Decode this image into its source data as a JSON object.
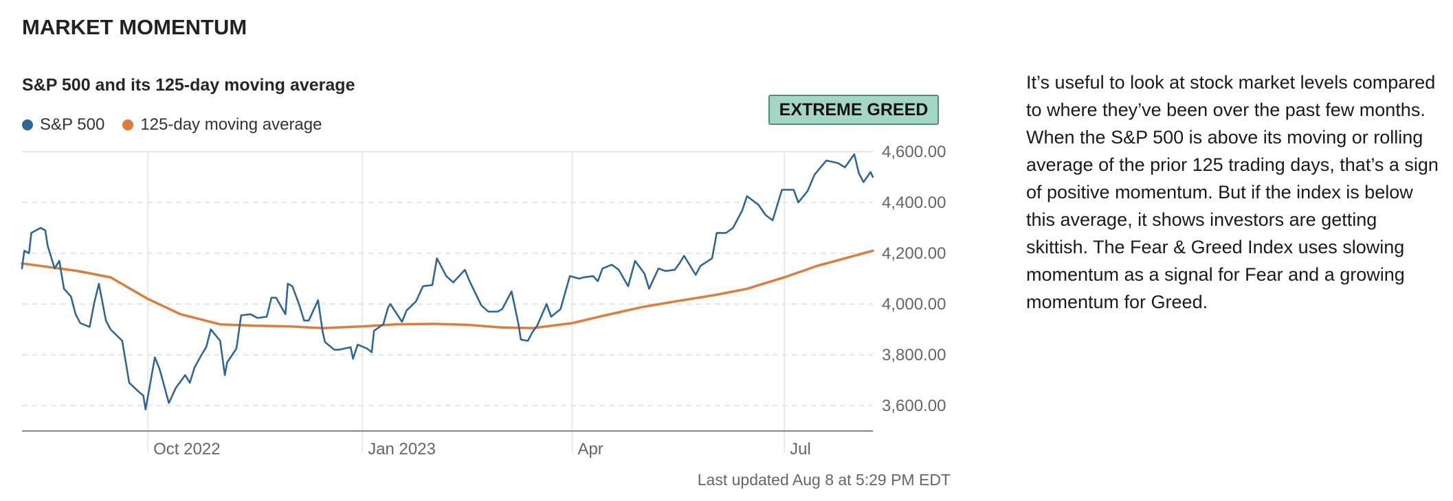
{
  "section": {
    "title": "MARKET MOMENTUM"
  },
  "badge": {
    "label": "EXTREME GREED",
    "color": "#a3d6c4"
  },
  "description": "It’s useful to look at stock market levels compared to where they’ve been over the past few months. When the S&P 500 is above its moving or rolling average of the prior 125 trading days, that’s a sign of positive momentum. But if the index is below this average, it shows investors are getting skittish. The Fear & Greed Index uses slowing momentum as a signal for Fear and a growing momentum for Greed.",
  "last_updated": "Last updated Aug 8 at 5:29 PM EDT",
  "chart_data": {
    "type": "line",
    "title": "S&P 500 and its 125-day moving average",
    "xlabel": "",
    "ylabel": "",
    "x_range": [
      "2022-08-08",
      "2023-08-08"
    ],
    "ylim": [
      3500,
      4600
    ],
    "yticks": [
      3600,
      3800,
      4000,
      4200,
      4400,
      4600
    ],
    "ytick_labels": [
      "3,600.00",
      "3,800.00",
      "4,000.00",
      "4,200.00",
      "4,400.00",
      "4,600.00"
    ],
    "xticks": [
      {
        "date": "2022-10-01",
        "label": "Oct 2022"
      },
      {
        "date": "2023-01-01",
        "label": "Jan 2023"
      },
      {
        "date": "2023-04-01",
        "label": "Apr"
      },
      {
        "date": "2023-07-01",
        "label": "Jul"
      }
    ],
    "grid": {
      "horizontal_dashed": true,
      "vertical": true
    },
    "legend_position": "top-left",
    "series": [
      {
        "name": "S&P 500",
        "color": "#2e6696",
        "points": [
          [
            "2022-08-08",
            4140
          ],
          [
            "2022-08-09",
            4210
          ],
          [
            "2022-08-11",
            4200
          ],
          [
            "2022-08-12",
            4280
          ],
          [
            "2022-08-16",
            4300
          ],
          [
            "2022-08-18",
            4290
          ],
          [
            "2022-08-19",
            4230
          ],
          [
            "2022-08-22",
            4140
          ],
          [
            "2022-08-24",
            4170
          ],
          [
            "2022-08-26",
            4060
          ],
          [
            "2022-08-29",
            4030
          ],
          [
            "2022-08-31",
            3960
          ],
          [
            "2022-09-02",
            3925
          ],
          [
            "2022-09-06",
            3910
          ],
          [
            "2022-09-08",
            4005
          ],
          [
            "2022-09-10",
            4080
          ],
          [
            "2022-09-13",
            3935
          ],
          [
            "2022-09-15",
            3900
          ],
          [
            "2022-09-20",
            3855
          ],
          [
            "2022-09-23",
            3690
          ],
          [
            "2022-09-27",
            3655
          ],
          [
            "2022-09-29",
            3640
          ],
          [
            "2022-09-30",
            3585
          ],
          [
            "2022-10-04",
            3790
          ],
          [
            "2022-10-06",
            3745
          ],
          [
            "2022-10-10",
            3610
          ],
          [
            "2022-10-13",
            3670
          ],
          [
            "2022-10-17",
            3720
          ],
          [
            "2022-10-19",
            3690
          ],
          [
            "2022-10-21",
            3750
          ],
          [
            "2022-10-24",
            3800
          ],
          [
            "2022-10-26",
            3830
          ],
          [
            "2022-10-28",
            3900
          ],
          [
            "2022-11-01",
            3855
          ],
          [
            "2022-11-03",
            3720
          ],
          [
            "2022-11-04",
            3770
          ],
          [
            "2022-11-08",
            3825
          ],
          [
            "2022-11-10",
            3955
          ],
          [
            "2022-11-14",
            3960
          ],
          [
            "2022-11-17",
            3945
          ],
          [
            "2022-11-21",
            3950
          ],
          [
            "2022-11-23",
            4025
          ],
          [
            "2022-11-25",
            4025
          ],
          [
            "2022-11-29",
            3960
          ],
          [
            "2022-11-30",
            4080
          ],
          [
            "2022-12-02",
            4070
          ],
          [
            "2022-12-05",
            3995
          ],
          [
            "2022-12-07",
            3935
          ],
          [
            "2022-12-09",
            3935
          ],
          [
            "2022-12-13",
            4015
          ],
          [
            "2022-12-15",
            3890
          ],
          [
            "2022-12-16",
            3850
          ],
          [
            "2022-12-20",
            3820
          ],
          [
            "2022-12-22",
            3820
          ],
          [
            "2022-12-27",
            3830
          ],
          [
            "2022-12-28",
            3785
          ],
          [
            "2022-12-30",
            3840
          ],
          [
            "2023-01-03",
            3825
          ],
          [
            "2023-01-05",
            3810
          ],
          [
            "2023-01-06",
            3895
          ],
          [
            "2023-01-10",
            3920
          ],
          [
            "2023-01-12",
            3985
          ],
          [
            "2023-01-13",
            4000
          ],
          [
            "2023-01-18",
            3930
          ],
          [
            "2023-01-20",
            3975
          ],
          [
            "2023-01-24",
            4010
          ],
          [
            "2023-01-27",
            4070
          ],
          [
            "2023-01-31",
            4075
          ],
          [
            "2023-02-02",
            4180
          ],
          [
            "2023-02-06",
            4110
          ],
          [
            "2023-02-09",
            4085
          ],
          [
            "2023-02-14",
            4135
          ],
          [
            "2023-02-16",
            4090
          ],
          [
            "2023-02-21",
            3995
          ],
          [
            "2023-02-24",
            3970
          ],
          [
            "2023-02-28",
            3970
          ],
          [
            "2023-03-02",
            3980
          ],
          [
            "2023-03-06",
            4050
          ],
          [
            "2023-03-09",
            3920
          ],
          [
            "2023-03-10",
            3860
          ],
          [
            "2023-03-13",
            3855
          ],
          [
            "2023-03-15",
            3890
          ],
          [
            "2023-03-17",
            3915
          ],
          [
            "2023-03-21",
            4000
          ],
          [
            "2023-03-23",
            3950
          ],
          [
            "2023-03-27",
            3980
          ],
          [
            "2023-03-31",
            4110
          ],
          [
            "2023-04-04",
            4100
          ],
          [
            "2023-04-06",
            4105
          ],
          [
            "2023-04-10",
            4110
          ],
          [
            "2023-04-12",
            4090
          ],
          [
            "2023-04-14",
            4140
          ],
          [
            "2023-04-18",
            4155
          ],
          [
            "2023-04-21",
            4135
          ],
          [
            "2023-04-25",
            4070
          ],
          [
            "2023-04-28",
            4170
          ],
          [
            "2023-05-02",
            4120
          ],
          [
            "2023-05-04",
            4060
          ],
          [
            "2023-05-08",
            4140
          ],
          [
            "2023-05-11",
            4130
          ],
          [
            "2023-05-15",
            4135
          ],
          [
            "2023-05-17",
            4160
          ],
          [
            "2023-05-19",
            4190
          ],
          [
            "2023-05-24",
            4115
          ],
          [
            "2023-05-26",
            4150
          ],
          [
            "2023-05-31",
            4180
          ],
          [
            "2023-06-02",
            4280
          ],
          [
            "2023-06-06",
            4280
          ],
          [
            "2023-06-09",
            4300
          ],
          [
            "2023-06-13",
            4370
          ],
          [
            "2023-06-15",
            4425
          ],
          [
            "2023-06-20",
            4390
          ],
          [
            "2023-06-23",
            4350
          ],
          [
            "2023-06-26",
            4330
          ],
          [
            "2023-06-30",
            4450
          ],
          [
            "2023-07-05",
            4450
          ],
          [
            "2023-07-07",
            4400
          ],
          [
            "2023-07-11",
            4445
          ],
          [
            "2023-07-14",
            4510
          ],
          [
            "2023-07-19",
            4565
          ],
          [
            "2023-07-24",
            4555
          ],
          [
            "2023-07-27",
            4538
          ],
          [
            "2023-07-31",
            4590
          ],
          [
            "2023-08-02",
            4515
          ],
          [
            "2023-08-04",
            4480
          ],
          [
            "2023-08-07",
            4520
          ],
          [
            "2023-08-08",
            4500
          ]
        ]
      },
      {
        "name": "125-day moving average",
        "color": "#e07b39",
        "points": [
          [
            "2022-08-08",
            4160
          ],
          [
            "2022-09-01",
            4130
          ],
          [
            "2022-09-15",
            4105
          ],
          [
            "2022-10-01",
            4020
          ],
          [
            "2022-10-15",
            3960
          ],
          [
            "2022-11-01",
            3920
          ],
          [
            "2022-11-15",
            3915
          ],
          [
            "2022-12-01",
            3912
          ],
          [
            "2022-12-15",
            3905
          ],
          [
            "2023-01-01",
            3912
          ],
          [
            "2023-01-15",
            3920
          ],
          [
            "2023-02-01",
            3922
          ],
          [
            "2023-02-15",
            3918
          ],
          [
            "2023-03-01",
            3908
          ],
          [
            "2023-03-15",
            3905
          ],
          [
            "2023-04-01",
            3925
          ],
          [
            "2023-04-15",
            3955
          ],
          [
            "2023-05-01",
            3988
          ],
          [
            "2023-05-15",
            4010
          ],
          [
            "2023-06-01",
            4035
          ],
          [
            "2023-06-15",
            4060
          ],
          [
            "2023-07-01",
            4105
          ],
          [
            "2023-07-15",
            4150
          ],
          [
            "2023-08-08",
            4210
          ]
        ]
      }
    ]
  }
}
